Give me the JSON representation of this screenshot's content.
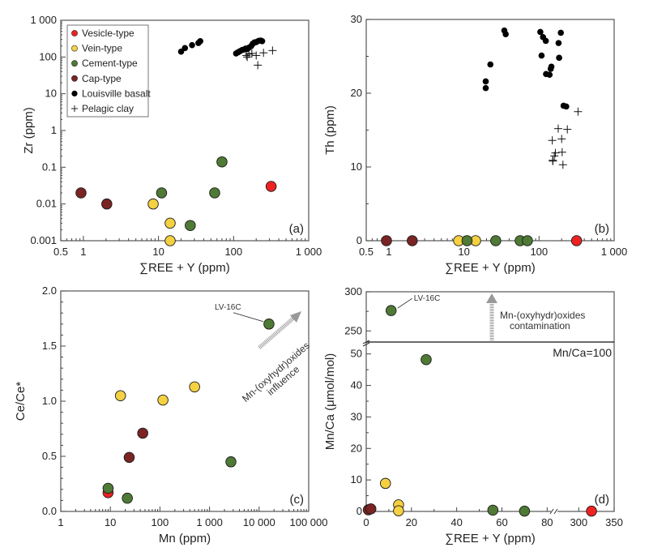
{
  "colors": {
    "Vesicle-type": "#ee2222",
    "Vein-type": "#f5d142",
    "Cement-type": "#4f7a35",
    "Cap-type": "#7a2424",
    "Louisville basalt": "#000000",
    "Pelagic clay": "#000000"
  },
  "legend": {
    "placement": "top-left of panel (a)",
    "entries": [
      {
        "label": "Vesicle-type",
        "marker": "circle"
      },
      {
        "label": "Vein-type",
        "marker": "circle"
      },
      {
        "label": "Cement-type",
        "marker": "circle"
      },
      {
        "label": "Cap-type",
        "marker": "circle"
      },
      {
        "label": "Louisville basalt",
        "marker": "dot"
      },
      {
        "label": "Pelagic clay",
        "marker": "plus"
      }
    ]
  },
  "chart_data": [
    {
      "id": "a",
      "type": "scatter",
      "panel_label": "(a)",
      "xlabel": "∑REE + Y (ppm)",
      "ylabel": "Zr (ppm)",
      "xscale": "log",
      "yscale": "log",
      "xlim": [
        0.5,
        1000
      ],
      "ylim": [
        0.001,
        1000
      ],
      "xticks": [
        {
          "v": 0.5,
          "t": "0.5"
        },
        {
          "v": 1,
          "t": "1"
        },
        {
          "v": 10,
          "t": "10"
        },
        {
          "v": 100,
          "t": "100"
        },
        {
          "v": 1000,
          "t": "1 000"
        }
      ],
      "yticks": [
        {
          "v": 0.001,
          "t": "0.001"
        },
        {
          "v": 0.01,
          "t": "0.01"
        },
        {
          "v": 0.1,
          "t": "0.1"
        },
        {
          "v": 1,
          "t": "1"
        },
        {
          "v": 10,
          "t": "10"
        },
        {
          "v": 100,
          "t": "100"
        },
        {
          "v": 1000,
          "t": "1 000"
        }
      ],
      "series": [
        {
          "name": "Vesicle-type",
          "points": [
            [
              316,
              0.03
            ]
          ]
        },
        {
          "name": "Vein-type",
          "points": [
            [
              8.5,
              0.01
            ],
            [
              14.3,
              0.003
            ],
            [
              14.3,
              0.001
            ]
          ]
        },
        {
          "name": "Cement-type",
          "points": [
            [
              11,
              0.02
            ],
            [
              26.5,
              0.0026
            ],
            [
              56,
              0.02
            ],
            [
              70,
              0.14
            ]
          ]
        },
        {
          "name": "Cap-type",
          "points": [
            [
              0.93,
              0.02
            ],
            [
              2.05,
              0.01
            ]
          ]
        },
        {
          "name": "Louisville basalt",
          "points": [
            [
              20,
              140
            ],
            [
              22.5,
              175
            ],
            [
              28,
              210
            ],
            [
              34,
              240
            ],
            [
              36,
              270
            ],
            [
              108,
              125
            ],
            [
              115,
              135
            ],
            [
              122,
              145
            ],
            [
              130,
              155
            ],
            [
              138,
              160
            ],
            [
              145,
              170
            ],
            [
              152,
              165
            ],
            [
              160,
              180
            ],
            [
              172,
              200
            ],
            [
              180,
              230
            ],
            [
              190,
              250
            ],
            [
              200,
              255
            ],
            [
              215,
              275
            ],
            [
              230,
              280
            ],
            [
              240,
              270
            ]
          ]
        },
        {
          "name": "Pelagic clay",
          "points": [
            [
              148,
              110
            ],
            [
              152,
              100
            ],
            [
              160,
              120
            ],
            [
              175,
              125
            ],
            [
              200,
              110
            ],
            [
              210,
              60
            ],
            [
              250,
              130
            ],
            [
              330,
              150
            ]
          ]
        }
      ]
    },
    {
      "id": "b",
      "type": "scatter",
      "panel_label": "(b)",
      "xlabel": "∑REE + Y (ppm)",
      "ylabel": "Th (ppm)",
      "xscale": "log",
      "yscale": "linear",
      "xlim": [
        0.5,
        1000
      ],
      "ylim": [
        0,
        30
      ],
      "xticks": [
        {
          "v": 0.5,
          "t": "0.5"
        },
        {
          "v": 1,
          "t": "1"
        },
        {
          "v": 10,
          "t": "10"
        },
        {
          "v": 100,
          "t": "100"
        },
        {
          "v": 1000,
          "t": "1 000"
        }
      ],
      "yticks": [
        {
          "v": 0,
          "t": "0"
        },
        {
          "v": 10,
          "t": "10"
        },
        {
          "v": 20,
          "t": "20"
        },
        {
          "v": 30,
          "t": "30"
        }
      ],
      "yminor": [
        5,
        15,
        25
      ],
      "series": [
        {
          "name": "Vesicle-type",
          "points": [
            [
              316,
              0
            ]
          ]
        },
        {
          "name": "Vein-type",
          "points": [
            [
              8.5,
              0
            ],
            [
              14.3,
              0
            ]
          ]
        },
        {
          "name": "Cement-type",
          "points": [
            [
              11,
              0
            ],
            [
              26.5,
              0
            ],
            [
              56,
              0
            ],
            [
              70,
              0
            ]
          ]
        },
        {
          "name": "Cap-type",
          "points": [
            [
              0.93,
              0
            ],
            [
              2.05,
              0
            ]
          ]
        },
        {
          "name": "Louisville basalt",
          "points": [
            [
              19.5,
              20.7
            ],
            [
              19.5,
              21.6
            ],
            [
              22.5,
              23.9
            ],
            [
              34.5,
              28.5
            ],
            [
              36,
              28.0
            ],
            [
              104,
              28.3
            ],
            [
              108,
              25.1
            ],
            [
              113,
              27.6
            ],
            [
              123,
              27.1
            ],
            [
              124,
              22.6
            ],
            [
              138,
              22.5
            ],
            [
              143,
              23.3
            ],
            [
              146,
              23.6
            ],
            [
              182,
              26.8
            ],
            [
              185,
              24.8
            ],
            [
              195,
              28.2
            ],
            [
              212,
              18.3
            ],
            [
              230,
              18.2
            ]
          ]
        },
        {
          "name": "Pelagic clay",
          "points": [
            [
              150,
              13.6
            ],
            [
              153,
              10.8
            ],
            [
              152,
              10.9
            ],
            [
              160,
              11.5
            ],
            [
              165,
              11.9
            ],
            [
              180,
              15.2
            ],
            [
              200,
              13.8
            ],
            [
              203,
              12.0
            ],
            [
              208,
              10.3
            ],
            [
              238,
              15.1
            ],
            [
              330,
              17.5
            ]
          ]
        }
      ]
    },
    {
      "id": "c",
      "type": "scatter",
      "panel_label": "(c)",
      "xlabel": "Mn (ppm)",
      "ylabel": "Ce/Ce*",
      "xscale": "log",
      "yscale": "linear",
      "xlim": [
        1,
        100000
      ],
      "ylim": [
        0,
        2.0
      ],
      "xticks": [
        {
          "v": 1,
          "t": "1"
        },
        {
          "v": 10,
          "t": "10"
        },
        {
          "v": 100,
          "t": "100"
        },
        {
          "v": 1000,
          "t": "1 000"
        },
        {
          "v": 10000,
          "t": "10 000"
        },
        {
          "v": 100000,
          "t": "100 000"
        }
      ],
      "yticks": [
        {
          "v": 0,
          "t": "0.0"
        },
        {
          "v": 0.5,
          "t": "0.5"
        },
        {
          "v": 1.0,
          "t": "1.0"
        },
        {
          "v": 1.5,
          "t": "1.5"
        },
        {
          "v": 2.0,
          "t": "2.0"
        }
      ],
      "yminor": [
        0.1,
        0.2,
        0.3,
        0.4,
        0.6,
        0.7,
        0.8,
        0.9,
        1.1,
        1.2,
        1.3,
        1.4,
        1.6,
        1.7,
        1.8,
        1.9
      ],
      "series": [
        {
          "name": "Vesicle-type",
          "points": [
            [
              9,
              0.17
            ]
          ]
        },
        {
          "name": "Vein-type",
          "points": [
            [
              16,
              1.05
            ],
            [
              115,
              1.01
            ],
            [
              500,
              1.13
            ]
          ]
        },
        {
          "name": "Cement-type",
          "points": [
            [
              9,
              0.21
            ],
            [
              22,
              0.12
            ],
            [
              2700,
              0.45
            ],
            [
              15800,
              1.7
            ]
          ]
        },
        {
          "name": "Cap-type",
          "points": [
            [
              24,
              0.49
            ],
            [
              45,
              0.71
            ]
          ]
        }
      ],
      "annotations": [
        {
          "text": "LV-16C",
          "target": [
            15800,
            1.7
          ]
        },
        {
          "text": "Mn-(oxyhydr)oxides",
          "line": 1
        },
        {
          "text": "influence",
          "line": 2
        }
      ]
    },
    {
      "id": "d",
      "type": "scatter",
      "panel_label": "(d)",
      "xlabel": "∑REE + Y (ppm)",
      "ylabel": "Mn/Ca (μmol/mol)",
      "xscale": "linear-broken",
      "yscale": "linear-broken",
      "x_segments": [
        [
          0,
          85
        ],
        [
          290,
          350
        ]
      ],
      "y_segments": [
        [
          0,
          54
        ],
        [
          236,
          300
        ]
      ],
      "xticks": [
        {
          "v": 0,
          "t": "0"
        },
        {
          "v": 20,
          "t": "20"
        },
        {
          "v": 40,
          "t": "40"
        },
        {
          "v": 60,
          "t": "60"
        },
        {
          "v": 80,
          "t": "80"
        },
        {
          "v": 300,
          "t": "300"
        },
        {
          "v": 350,
          "t": "350"
        }
      ],
      "yticks": [
        {
          "v": 0,
          "t": "0"
        },
        {
          "v": 10,
          "t": "10"
        },
        {
          "v": 20,
          "t": "20"
        },
        {
          "v": 30,
          "t": "30"
        },
        {
          "v": 40,
          "t": "40"
        },
        {
          "v": 50,
          "t": "50"
        },
        {
          "v": 250,
          "t": "250"
        },
        {
          "v": 300,
          "t": "300"
        }
      ],
      "series": [
        {
          "name": "Vesicle-type",
          "points": [
            [
              318,
              0.1
            ]
          ]
        },
        {
          "name": "Vein-type",
          "points": [
            [
              8.5,
              8.9
            ],
            [
              14.3,
              2.1
            ],
            [
              14.3,
              0.2
            ]
          ]
        },
        {
          "name": "Cement-type",
          "points": [
            [
              11,
              276
            ],
            [
              26.5,
              48.2
            ],
            [
              56,
              0.4
            ],
            [
              70,
              0.1
            ]
          ]
        },
        {
          "name": "Cap-type",
          "points": [
            [
              0.93,
              0.5
            ],
            [
              2.05,
              0.8
            ]
          ]
        }
      ],
      "annotations": [
        {
          "text": "LV-16C",
          "target": [
            11,
            276
          ]
        },
        {
          "text": "Mn-(oxyhydr)oxides",
          "line": 1
        },
        {
          "text": "contamination",
          "line": 2
        },
        {
          "text": "Mn/Ca=100",
          "line": 3
        }
      ]
    }
  ]
}
